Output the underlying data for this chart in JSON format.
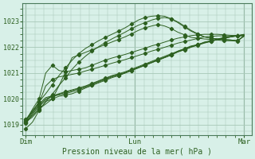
{
  "title": "",
  "xlabel": "Pression niveau de la mer( hPa )",
  "bg_color": "#d8f0e8",
  "grid_color": "#a8c8b8",
  "line_color": "#2d6020",
  "text_color": "#2d6020",
  "ylim": [
    1018.6,
    1023.7
  ],
  "yticks": [
    1019,
    1020,
    1021,
    1022,
    1023
  ],
  "xtick_labels": [
    "Dim",
    "Lun",
    "Mar"
  ],
  "xtick_positions": [
    0.0,
    1.0,
    2.0
  ],
  "series": [
    [
      1018.85,
      1019.1,
      1019.55,
      1019.9,
      1020.0,
      1020.1,
      1020.15,
      1020.2,
      1020.3,
      1020.42,
      1020.52,
      1020.62,
      1020.72,
      1020.82,
      1020.9,
      1021.0,
      1021.1,
      1021.2,
      1021.3,
      1021.4,
      1021.5,
      1021.6,
      1021.7,
      1021.85,
      1021.95,
      1022.05,
      1022.1,
      1022.2,
      1022.25,
      1022.3,
      1022.35,
      1022.4,
      1022.45,
      1022.5
    ],
    [
      1019.05,
      1019.4,
      1019.7,
      1019.95,
      1020.1,
      1020.15,
      1020.2,
      1020.28,
      1020.35,
      1020.45,
      1020.55,
      1020.65,
      1020.75,
      1020.85,
      1020.92,
      1021.0,
      1021.1,
      1021.2,
      1021.3,
      1021.4,
      1021.5,
      1021.6,
      1021.7,
      1021.82,
      1021.92,
      1022.02,
      1022.1,
      1022.18,
      1022.25,
      1022.32,
      1022.38,
      1022.42,
      1022.45,
      1022.48
    ],
    [
      1019.1,
      1019.45,
      1019.75,
      1020.0,
      1020.1,
      1020.18,
      1020.25,
      1020.32,
      1020.4,
      1020.48,
      1020.58,
      1020.68,
      1020.78,
      1020.88,
      1020.95,
      1021.02,
      1021.12,
      1021.22,
      1021.32,
      1021.42,
      1021.52,
      1021.62,
      1021.72,
      1021.82,
      1021.9,
      1022.0,
      1022.08,
      1022.16,
      1022.22,
      1022.3,
      1022.36,
      1022.4,
      1022.44,
      1022.48
    ],
    [
      1019.2,
      1019.5,
      1019.8,
      1020.05,
      1020.12,
      1020.2,
      1020.28,
      1020.35,
      1020.42,
      1020.5,
      1020.6,
      1020.7,
      1020.8,
      1020.9,
      1020.97,
      1021.05,
      1021.15,
      1021.25,
      1021.35,
      1021.45,
      1021.55,
      1021.65,
      1021.75,
      1021.85,
      1021.92,
      1022.02,
      1022.1,
      1022.18,
      1022.24,
      1022.3,
      1022.36,
      1022.4,
      1022.44,
      1022.48
    ],
    [
      1019.15,
      1019.6,
      1020.0,
      1021.0,
      1021.3,
      1021.1,
      1021.05,
      1021.1,
      1021.15,
      1021.2,
      1021.3,
      1021.4,
      1021.5,
      1021.58,
      1021.65,
      1021.72,
      1021.8,
      1021.88,
      1021.96,
      1022.05,
      1022.12,
      1022.2,
      1022.28,
      1022.35,
      1022.4,
      1022.45,
      1022.48,
      1022.5,
      1022.5,
      1022.5,
      1022.48,
      1022.46,
      1022.45,
      1022.44
    ],
    [
      1019.2,
      1019.55,
      1019.85,
      1020.5,
      1020.75,
      1020.85,
      1020.9,
      1020.95,
      1021.0,
      1021.08,
      1021.15,
      1021.22,
      1021.3,
      1021.38,
      1021.45,
      1021.52,
      1021.6,
      1021.68,
      1021.76,
      1021.85,
      1021.92,
      1022.0,
      1022.08,
      1022.16,
      1022.22,
      1022.28,
      1022.34,
      1022.4,
      1022.42,
      1022.44,
      1022.44,
      1022.44,
      1022.44,
      1022.45
    ],
    [
      1019.1,
      1019.35,
      1019.62,
      1019.8,
      1020.0,
      1020.5,
      1021.05,
      1021.6,
      1021.7,
      1021.8,
      1021.9,
      1022.0,
      1022.1,
      1022.2,
      1022.3,
      1022.4,
      1022.52,
      1022.65,
      1022.75,
      1022.82,
      1022.88,
      1022.82,
      1022.72,
      1022.58,
      1022.48,
      1022.38,
      1022.35,
      1022.32,
      1022.3,
      1022.28,
      1022.25,
      1022.25,
      1022.24,
      1022.45
    ],
    [
      1019.15,
      1019.5,
      1019.9,
      1020.2,
      1020.55,
      1020.9,
      1021.2,
      1021.5,
      1021.75,
      1021.95,
      1022.1,
      1022.25,
      1022.38,
      1022.5,
      1022.62,
      1022.75,
      1022.9,
      1023.05,
      1023.15,
      1023.2,
      1023.22,
      1023.2,
      1023.1,
      1022.95,
      1022.78,
      1022.62,
      1022.5,
      1022.4,
      1022.35,
      1022.32,
      1022.3,
      1022.28,
      1022.25,
      1022.45
    ],
    [
      1019.1,
      1019.3,
      1019.58,
      1019.88,
      1020.18,
      1020.52,
      1020.82,
      1021.15,
      1021.42,
      1021.65,
      1021.85,
      1022.02,
      1022.18,
      1022.32,
      1022.45,
      1022.58,
      1022.72,
      1022.85,
      1022.95,
      1023.05,
      1023.12,
      1023.15,
      1023.1,
      1022.98,
      1022.82,
      1022.65,
      1022.52,
      1022.4,
      1022.35,
      1022.32,
      1022.3,
      1022.28,
      1022.25,
      1022.42
    ]
  ]
}
